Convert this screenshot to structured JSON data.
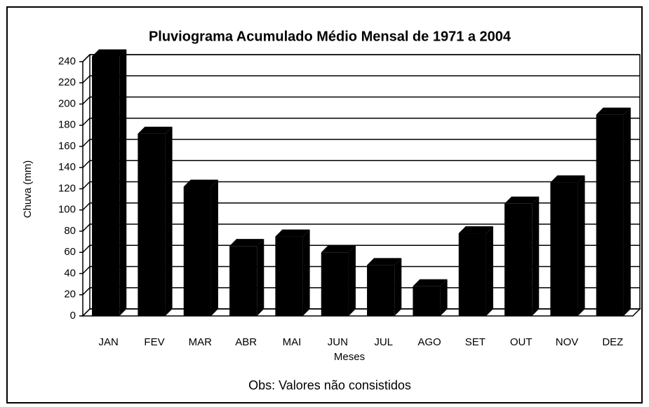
{
  "chart_data": {
    "type": "bar",
    "title": "Pluviograma Acumulado Médio Mensal de 1971 a 2004",
    "x_label": "Meses",
    "y_label": "Chuva (mm)",
    "note": "Obs: Valores não consistidos",
    "categories": [
      "JAN",
      "FEV",
      "MAR",
      "ABR",
      "MAI",
      "JUN",
      "JUL",
      "AGO",
      "SET",
      "OUT",
      "NOV",
      "DEZ"
    ],
    "values": [
      245,
      172,
      122,
      66,
      75,
      60,
      48,
      28,
      78,
      106,
      126,
      190
    ],
    "color": "#000000",
    "ylim": [
      0,
      240
    ],
    "yticks": [
      0,
      20,
      40,
      60,
      80,
      100,
      120,
      140,
      160,
      180,
      200,
      220,
      240
    ],
    "grid": true
  }
}
